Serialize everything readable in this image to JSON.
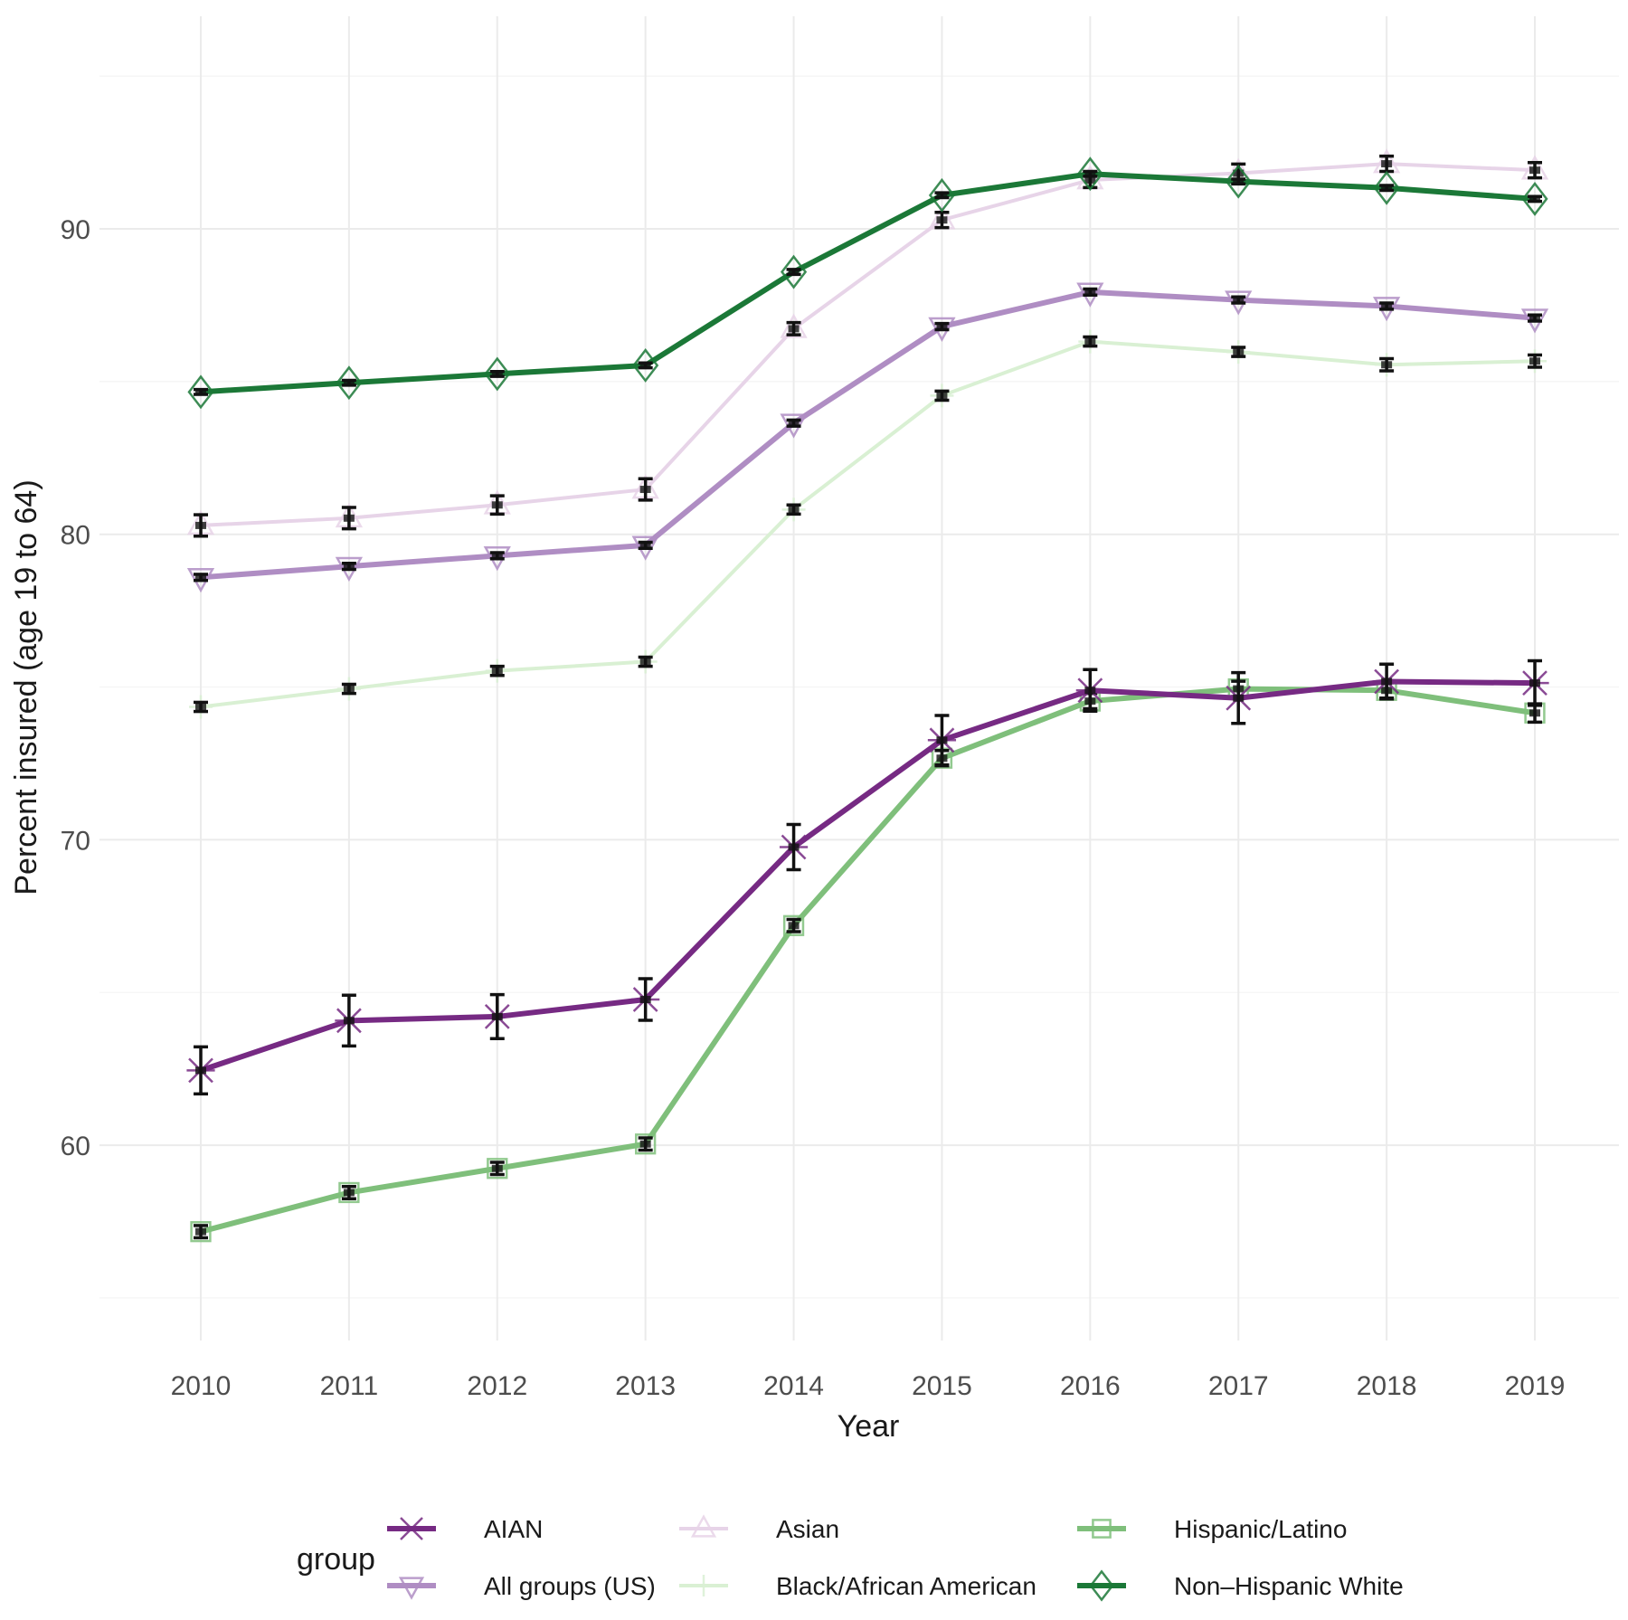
{
  "chart_data": {
    "type": "line",
    "title": "",
    "xlabel": "Year",
    "ylabel": "Percent insured (age 19 to 64)",
    "x": [
      2010,
      2011,
      2012,
      2013,
      2014,
      2015,
      2016,
      2017,
      2018,
      2019
    ],
    "x_tick_labels": [
      "2010",
      "2011",
      "2012",
      "2013",
      "2014",
      "2015",
      "2016",
      "2017",
      "2018",
      "2019"
    ],
    "y_ticks": [
      60,
      70,
      80,
      90
    ],
    "y_tick_labels": [
      "60",
      "70",
      "80",
      "90"
    ],
    "ylim": [
      53.9,
      97.5
    ],
    "grid": true,
    "legend": {
      "title": "group",
      "position": "bottom",
      "columns": 3
    },
    "series": [
      {
        "name": "AIAN",
        "color": "#762a83",
        "marker": "asterisk",
        "line_width": "thick",
        "values": [
          62.45,
          64.08,
          64.21,
          64.77,
          69.76,
          73.26,
          74.89,
          74.64,
          75.18,
          75.13
        ],
        "error": [
          0.77,
          0.83,
          0.72,
          0.68,
          0.74,
          0.81,
          0.68,
          0.83,
          0.57,
          0.73
        ]
      },
      {
        "name": "All groups (US)",
        "color": "#af8dc3",
        "marker": "triangle-down",
        "line_width": "thick",
        "values": [
          78.59,
          78.95,
          79.3,
          79.64,
          83.64,
          86.8,
          87.93,
          87.67,
          87.47,
          87.08
        ],
        "error": [
          0.1,
          0.1,
          0.1,
          0.1,
          0.1,
          0.1,
          0.1,
          0.1,
          0.1,
          0.1
        ]
      },
      {
        "name": "Asian",
        "color": "#e7d4e8",
        "marker": "triangle-up",
        "line_width": "thin",
        "values": [
          80.29,
          80.53,
          80.96,
          81.47,
          86.73,
          90.29,
          91.6,
          91.82,
          92.13,
          91.92
        ],
        "error": [
          0.35,
          0.35,
          0.3,
          0.35,
          0.2,
          0.25,
          0.25,
          0.3,
          0.25,
          0.25
        ]
      },
      {
        "name": "Black/African American",
        "color": "#d9f0d3",
        "marker": "cross",
        "line_width": "thin",
        "values": [
          74.35,
          74.94,
          75.53,
          75.83,
          80.81,
          84.54,
          86.31,
          85.97,
          85.55,
          85.67
        ],
        "error": [
          0.15,
          0.15,
          0.15,
          0.15,
          0.15,
          0.15,
          0.15,
          0.15,
          0.2,
          0.2
        ]
      },
      {
        "name": "Hispanic/Latino",
        "color": "#7fbf7b",
        "marker": "square",
        "line_width": "thick",
        "values": [
          57.17,
          58.45,
          59.24,
          60.04,
          67.19,
          72.67,
          74.54,
          74.94,
          74.89,
          74.15
        ],
        "error": [
          0.2,
          0.2,
          0.2,
          0.2,
          0.2,
          0.25,
          0.25,
          0.25,
          0.25,
          0.3
        ]
      },
      {
        "name": "Non–Hispanic White",
        "color": "#1b7837",
        "marker": "diamond",
        "line_width": "thick",
        "values": [
          84.66,
          84.96,
          85.25,
          85.53,
          88.59,
          91.1,
          91.8,
          91.55,
          91.34,
          90.98
        ],
        "error": [
          0.08,
          0.08,
          0.08,
          0.08,
          0.08,
          0.08,
          0.08,
          0.08,
          0.08,
          0.08
        ]
      }
    ]
  }
}
